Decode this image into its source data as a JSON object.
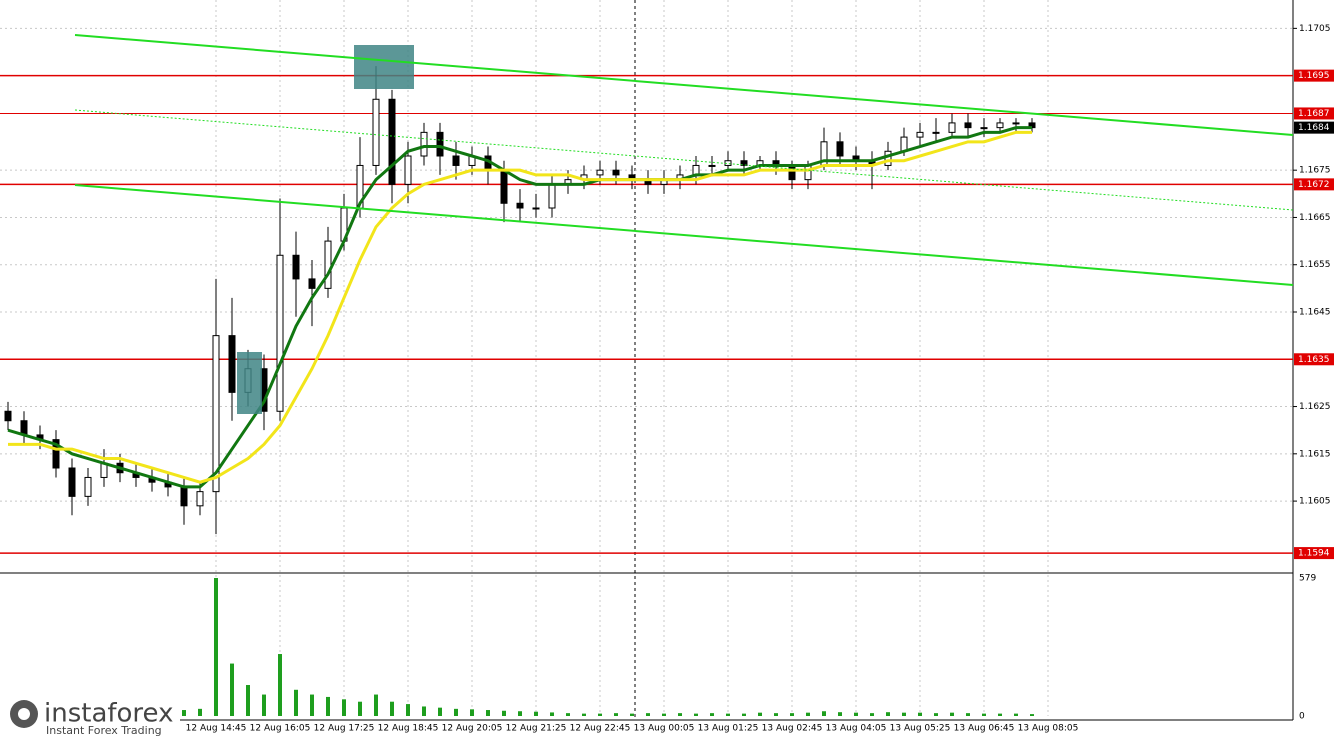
{
  "chart_data": {
    "type": "candlestick",
    "categories": [
      null,
      null,
      null,
      null,
      null,
      null,
      null,
      null,
      null,
      null,
      null,
      null,
      null,
      "12 Aug 14:45",
      null,
      null,
      null,
      "12 Aug 16:05",
      null,
      null,
      null,
      "12 Aug 17:25",
      null,
      null,
      null,
      "12 Aug 18:45",
      null,
      null,
      null,
      "12 Aug 20:05",
      null,
      null,
      null,
      "12 Aug 21:25",
      null,
      null,
      null,
      "12 Aug 22:45",
      null,
      null,
      null,
      "13 Aug 00:05",
      null,
      null,
      null,
      "13 Aug 01:25",
      null,
      null,
      null,
      "13 Aug 02:45",
      null,
      null,
      null,
      "13 Aug 04:05",
      null,
      null,
      null,
      "13 Aug 05:25",
      null,
      null,
      null,
      "13 Aug 06:45",
      null,
      null,
      null,
      "13 Aug 08:05"
    ],
    "open": [
      1.1624,
      1.1622,
      1.1619,
      1.1618,
      1.1612,
      1.1606,
      1.161,
      1.1613,
      1.1611,
      1.161,
      1.1609,
      1.1608,
      1.1604,
      1.1607,
      1.164,
      1.1628,
      1.1633,
      1.1624,
      1.1657,
      1.1652,
      1.165,
      1.166,
      1.1667,
      1.1676,
      1.169,
      1.1672,
      1.1678,
      1.1683,
      1.1678,
      1.1676,
      1.1678,
      1.1675,
      1.1668,
      1.1667,
      1.1667,
      1.1672,
      1.1673,
      1.1674,
      1.1675,
      1.1674,
      1.1673,
      1.1672,
      1.1673,
      1.1674,
      1.1676,
      1.1676,
      1.1677,
      1.1676,
      1.1677,
      1.1676,
      1.1673,
      1.1676,
      1.1681,
      1.1678,
      1.1677,
      1.1676,
      1.1679,
      1.1682,
      1.1683,
      1.1683,
      1.1685,
      1.1684,
      1.1684,
      1.1685,
      1.1685,
      null
    ],
    "high": [
      1.1626,
      1.1624,
      1.1621,
      1.162,
      1.1614,
      1.1612,
      1.1616,
      1.1615,
      1.1613,
      1.1612,
      1.1611,
      1.161,
      1.1609,
      1.1652,
      1.1648,
      1.1637,
      1.1636,
      1.1669,
      1.1662,
      1.1656,
      1.1663,
      1.167,
      1.1682,
      1.1697,
      1.1692,
      1.1681,
      1.1685,
      1.1685,
      1.1681,
      1.168,
      1.168,
      1.1677,
      1.1671,
      1.167,
      1.1674,
      1.1675,
      1.1676,
      1.1677,
      1.1677,
      1.1676,
      1.1675,
      1.1675,
      1.1676,
      1.1678,
      1.1678,
      1.1679,
      1.1679,
      1.1678,
      1.1679,
      1.1677,
      1.1677,
      1.1684,
      1.1683,
      1.168,
      1.1679,
      1.1681,
      1.1684,
      1.1685,
      1.1686,
      1.1687,
      1.1687,
      1.1686,
      1.1686,
      1.1686,
      1.1686,
      null
    ],
    "low": [
      1.162,
      1.1617,
      1.1616,
      1.161,
      1.1602,
      1.1604,
      1.1608,
      1.1609,
      1.1608,
      1.1607,
      1.1606,
      1.16,
      1.1602,
      1.1598,
      1.1622,
      1.1625,
      1.162,
      1.1622,
      1.1644,
      1.1642,
      1.1648,
      1.1658,
      1.1665,
      1.1674,
      1.1668,
      1.1668,
      1.1676,
      1.1674,
      1.1673,
      1.1674,
      1.1672,
      1.1664,
      1.1664,
      1.1665,
      1.1665,
      1.167,
      1.1671,
      1.1672,
      1.1672,
      1.1671,
      1.167,
      1.167,
      1.1671,
      1.1672,
      1.1674,
      1.1675,
      1.1674,
      1.1675,
      1.1674,
      1.1671,
      1.1671,
      1.1675,
      1.1676,
      1.1675,
      1.1671,
      1.1675,
      1.1678,
      1.168,
      1.1681,
      1.1682,
      1.1682,
      1.1682,
      1.1683,
      1.1683,
      1.1683,
      null
    ],
    "close": [
      1.1622,
      1.1619,
      1.1618,
      1.1612,
      1.1606,
      1.161,
      1.1613,
      1.1611,
      1.161,
      1.1609,
      1.1608,
      1.1604,
      1.1607,
      1.164,
      1.1628,
      1.1633,
      1.1624,
      1.1657,
      1.1652,
      1.165,
      1.166,
      1.1667,
      1.1676,
      1.169,
      1.1672,
      1.1678,
      1.1683,
      1.1678,
      1.1676,
      1.1678,
      1.1675,
      1.1668,
      1.1667,
      1.1667,
      1.1672,
      1.1673,
      1.1674,
      1.1675,
      1.1674,
      1.1673,
      1.1672,
      1.1673,
      1.1674,
      1.1676,
      1.1676,
      1.1677,
      1.1676,
      1.1677,
      1.1676,
      1.1673,
      1.1676,
      1.1681,
      1.1678,
      1.1677,
      1.1676,
      1.1679,
      1.1682,
      1.1683,
      1.1683,
      1.1685,
      1.1684,
      1.1684,
      1.1685,
      1.1685,
      1.1684,
      null
    ],
    "volume": [
      25,
      20,
      22,
      18,
      30,
      22,
      18,
      20,
      15,
      18,
      20,
      25,
      30,
      579,
      220,
      130,
      90,
      260,
      110,
      90,
      80,
      70,
      60,
      90,
      60,
      50,
      40,
      35,
      30,
      28,
      25,
      22,
      20,
      18,
      15,
      12,
      10,
      10,
      12,
      10,
      12,
      10,
      12,
      10,
      12,
      10,
      10,
      14,
      12,
      12,
      14,
      20,
      16,
      14,
      12,
      16,
      14,
      14,
      12,
      14,
      12,
      10,
      10,
      10,
      8,
      null
    ],
    "moving_averages": [
      {
        "color": "#117711",
        "values": [
          1.162,
          1.1619,
          1.1618,
          1.1617,
          1.1615,
          1.1614,
          1.1613,
          1.1612,
          1.1611,
          1.161,
          1.1609,
          1.1608,
          1.1608,
          1.1611,
          1.1616,
          1.1621,
          1.1626,
          1.1634,
          1.1642,
          1.1648,
          1.1653,
          1.166,
          1.1668,
          1.1673,
          1.1676,
          1.1679,
          1.168,
          1.168,
          1.1679,
          1.1678,
          1.1677,
          1.1675,
          1.1673,
          1.1672,
          1.1672,
          1.1672,
          1.1672,
          1.1673,
          1.1673,
          1.1673,
          1.1673,
          1.1673,
          1.1673,
          1.1674,
          1.1674,
          1.1675,
          1.1675,
          1.1676,
          1.1676,
          1.1676,
          1.1676,
          1.1677,
          1.1677,
          1.1677,
          1.1677,
          1.1678,
          1.1679,
          1.168,
          1.1681,
          1.1682,
          1.1682,
          1.1683,
          1.1683,
          1.1684,
          1.1684,
          null
        ]
      },
      {
        "color": "#f2e51a",
        "values": [
          1.1617,
          1.1617,
          1.1617,
          1.1616,
          1.1616,
          1.1615,
          1.1614,
          1.1614,
          1.1613,
          1.1612,
          1.1611,
          1.161,
          1.1609,
          1.161,
          1.1612,
          1.1614,
          1.1617,
          1.1621,
          1.1627,
          1.1633,
          1.164,
          1.1648,
          1.1656,
          1.1663,
          1.1667,
          1.167,
          1.1672,
          1.1673,
          1.1674,
          1.1675,
          1.1675,
          1.1675,
          1.1675,
          1.1674,
          1.1674,
          1.1674,
          1.1673,
          1.1673,
          1.1673,
          1.1673,
          1.1673,
          1.1673,
          1.1673,
          1.1673,
          1.1674,
          1.1674,
          1.1674,
          1.1675,
          1.1675,
          1.1675,
          1.1675,
          1.1676,
          1.1676,
          1.1676,
          1.1676,
          1.1677,
          1.1677,
          1.1678,
          1.1679,
          1.168,
          1.1681,
          1.1681,
          1.1682,
          1.1683,
          1.1683,
          null
        ]
      }
    ],
    "ylim": [
      1.159,
      1.1711
    ],
    "yticks": [
      1.1705,
      1.1675,
      1.1665,
      1.1655,
      1.1645,
      1.1625,
      1.1615,
      1.1605
    ],
    "levels": [
      1.1695,
      1.1687,
      1.1672,
      1.1635,
      1.1594
    ],
    "level_color": "#e00000",
    "current_price": 1.1684,
    "volume_color": "#1e9e1e",
    "vlim": [
      0,
      579
    ],
    "vticks": [
      0,
      579
    ],
    "grid": true
  },
  "watermark": {
    "brand": "instaforex",
    "tagline": "Instant Forex Trading"
  }
}
